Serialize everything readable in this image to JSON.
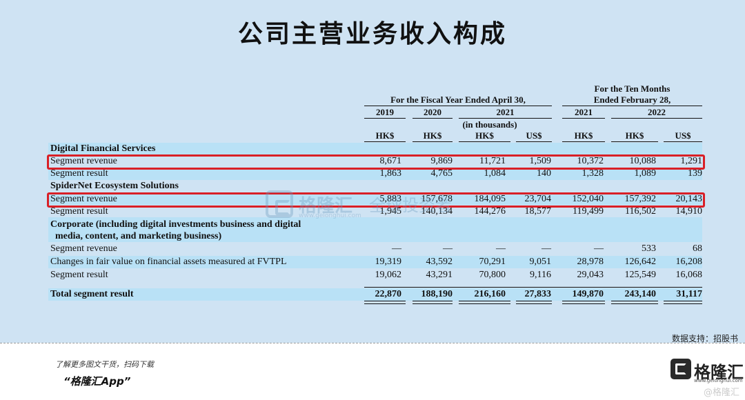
{
  "title": "公司主营业务收入构成",
  "header": {
    "fiscal_group": "For the Fiscal Year Ended April 30,",
    "ten_months_line1": "For the Ten Months",
    "ten_months_line2": "Ended February 28,",
    "years": [
      "2019",
      "2020",
      "2021",
      "2021",
      "2022"
    ],
    "in_thousands": "(in thousands)",
    "currencies": [
      "HK$",
      "HK$",
      "HK$",
      "US$",
      "HK$",
      "HK$",
      "US$"
    ]
  },
  "sections": {
    "dfs": "Digital Financial Services",
    "spidernet": "SpiderNet Ecosystem Solutions",
    "corporate_line1": "Corporate (including digital investments business and digital",
    "corporate_line2": "media, content, and marketing business)"
  },
  "rows": [
    {
      "label": "Segment revenue",
      "values": [
        "8,671",
        "9,869",
        "11,721",
        "1,509",
        "10,372",
        "10,088",
        "1,291"
      ]
    },
    {
      "label": "Segment result",
      "values": [
        "1,863",
        "4,765",
        "1,084",
        "140",
        "1,328",
        "1,089",
        "139"
      ]
    },
    {
      "label": "Segment revenue",
      "values": [
        "5,883",
        "157,678",
        "184,095",
        "23,704",
        "152,040",
        "157,392",
        "20,143"
      ]
    },
    {
      "label": "Segment result",
      "values": [
        "1,945",
        "140,134",
        "144,276",
        "18,577",
        "119,499",
        "116,502",
        "14,910"
      ]
    },
    {
      "label": "Segment revenue",
      "values": [
        "—",
        "—",
        "—",
        "—",
        "—",
        "533",
        "68"
      ]
    },
    {
      "label": "Changes in fair value on financial assets measured at FVTPL",
      "values": [
        "19,319",
        "43,592",
        "70,291",
        "9,051",
        "28,978",
        "126,642",
        "16,208"
      ]
    },
    {
      "label": "Segment result",
      "values": [
        "19,062",
        "43,291",
        "70,800",
        "9,116",
        "29,043",
        "125,549",
        "16,068"
      ]
    },
    {
      "label": "Total segment result",
      "values": [
        "22,870",
        "188,190",
        "216,160",
        "27,833",
        "149,870",
        "243,140",
        "31,117"
      ]
    }
  ],
  "highlight_color": "#d91f26",
  "watermark": {
    "name": "格隆汇",
    "slogan": "全球投资者",
    "url": "www.gelonghui.com"
  },
  "source": "数据支持：招股书",
  "footer": {
    "line1": "了解更多图文干货，扫码下载",
    "line2": "“格隆汇App”",
    "brand_name": "格隆汇",
    "brand_url": "www.gelonghui.com",
    "brand_watermark": "@格隆汇"
  }
}
